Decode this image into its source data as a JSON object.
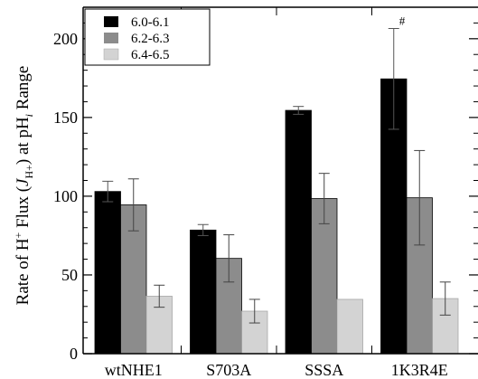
{
  "chart_data": {
    "type": "bar",
    "categories": [
      "wtNHE1",
      "S703A",
      "SSSA",
      "1K3R4E"
    ],
    "series": [
      {
        "name": "6.0-6.1",
        "color": "#000000",
        "values": [
          103,
          78.5,
          154.5,
          174.5
        ],
        "errors": [
          6.5,
          3.5,
          2.5,
          32
        ]
      },
      {
        "name": "6.2-6.3",
        "color": "#8c8c8c",
        "values": [
          94.5,
          60.5,
          98.5,
          99
        ],
        "errors": [
          16.5,
          15,
          16,
          30
        ]
      },
      {
        "name": "6.4-6.5",
        "color": "#d3d3d3",
        "values": [
          36.5,
          27,
          34.5,
          35
        ],
        "errors": [
          7,
          7.5,
          0,
          10.5
        ]
      }
    ],
    "ylabel": {
      "prefix": "Rate of H",
      "prefix_sup": "+",
      "middle": " Flux (",
      "italic": "J",
      "sub": "H+",
      "suffix": ") at pH",
      "suffix_sub": "i",
      "end": " Range"
    },
    "ylim": [
      0,
      220
    ],
    "yticks": [
      0,
      50,
      100,
      150,
      200
    ],
    "annotations": [
      {
        "text": "#",
        "category": "1K3R4E",
        "series": "6.0-6.1"
      }
    ],
    "legend_position": "top-left",
    "grid": false
  }
}
